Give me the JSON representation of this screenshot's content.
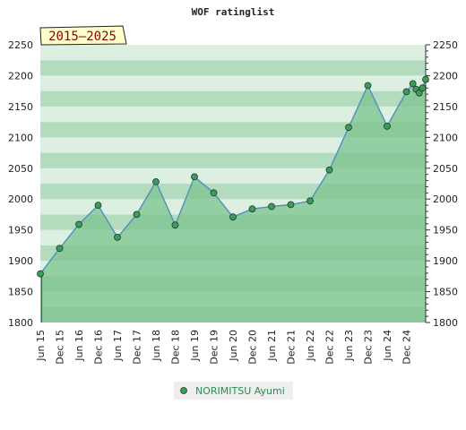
{
  "chart_data": {
    "type": "area",
    "title": "WOF ratinglist",
    "period_badge": "2015–2025",
    "ylim": [
      1800,
      2250
    ],
    "y_ticks": [
      1800,
      1850,
      1900,
      1950,
      2000,
      2050,
      2100,
      2150,
      2200,
      2250
    ],
    "x_tick_labels": [
      "Jun 15",
      "Dec 15",
      "Jun 16",
      "Dec 16",
      "Jun 17",
      "Dec 17",
      "Jun 18",
      "Dec 18",
      "Jun 19",
      "Dec 19",
      "Jun 20",
      "Dec 20",
      "Jun 21",
      "Dec 21",
      "Jun 22",
      "Dec 22",
      "Jun 23",
      "Dec 23",
      "Jun 24",
      "Dec 24"
    ],
    "legend_position": "bottom",
    "grid": true,
    "colors": {
      "line": "#4f8fbf",
      "area": "#7cc38e",
      "band_dark": "#b3dcbe",
      "band_light": "#dcefe1",
      "marker": "#3c9c5c"
    },
    "series": [
      {
        "name": "NORIMITSU Ayumi",
        "points": [
          {
            "x": "2015-06",
            "y": 1879
          },
          {
            "x": "2015-12",
            "y": 1920
          },
          {
            "x": "2016-06",
            "y": 1959
          },
          {
            "x": "2016-12",
            "y": 1990
          },
          {
            "x": "2017-06",
            "y": 1938
          },
          {
            "x": "2017-12",
            "y": 1975
          },
          {
            "x": "2018-06",
            "y": 2028
          },
          {
            "x": "2018-12",
            "y": 1958
          },
          {
            "x": "2019-06",
            "y": 2036
          },
          {
            "x": "2019-12",
            "y": 2010
          },
          {
            "x": "2020-06",
            "y": 1971
          },
          {
            "x": "2020-12",
            "y": 1984
          },
          {
            "x": "2021-06",
            "y": 1988
          },
          {
            "x": "2021-12",
            "y": 1991
          },
          {
            "x": "2022-06",
            "y": 1997
          },
          {
            "x": "2022-12",
            "y": 2047
          },
          {
            "x": "2023-06",
            "y": 2116
          },
          {
            "x": "2023-12",
            "y": 2184
          },
          {
            "x": "2024-06",
            "y": 2118
          },
          {
            "x": "2024-12",
            "y": 2174
          },
          {
            "x": "2025-02",
            "y": 2187
          },
          {
            "x": "2025-03",
            "y": 2178
          },
          {
            "x": "2025-04",
            "y": 2172
          },
          {
            "x": "2025-05",
            "y": 2180
          },
          {
            "x": "2025-06",
            "y": 2194
          }
        ]
      }
    ]
  }
}
